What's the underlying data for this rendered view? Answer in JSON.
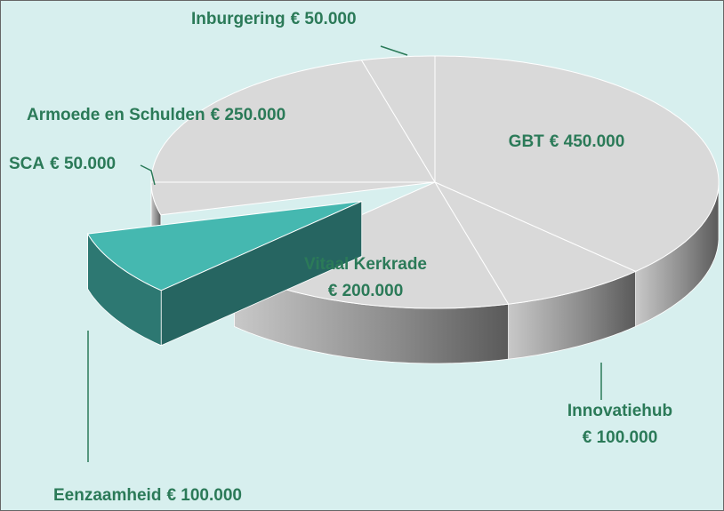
{
  "chart_data": {
    "type": "pie",
    "categories": [
      "Inburgering",
      "GBT",
      "Innovatiehub",
      "Vitaal Kerkrade",
      "Eenzaamheid",
      "SCA",
      "Armoede en Schulden"
    ],
    "values": [
      50000,
      450000,
      100000,
      200000,
      100000,
      50000,
      250000
    ],
    "value_labels": [
      "€ 50.000",
      "€ 450.000",
      "€ 100.000",
      "€ 200.000",
      "€ 100.000",
      "€ 50.000",
      "€ 250.000"
    ],
    "colors": [
      "#d9d9d9",
      "#d9d9d9",
      "#d9d9d9",
      "#d9d9d9",
      "#45b8b0",
      "#d9d9d9",
      "#d9d9d9"
    ],
    "explode": [
      false,
      false,
      false,
      false,
      true,
      false,
      false
    ]
  }
}
